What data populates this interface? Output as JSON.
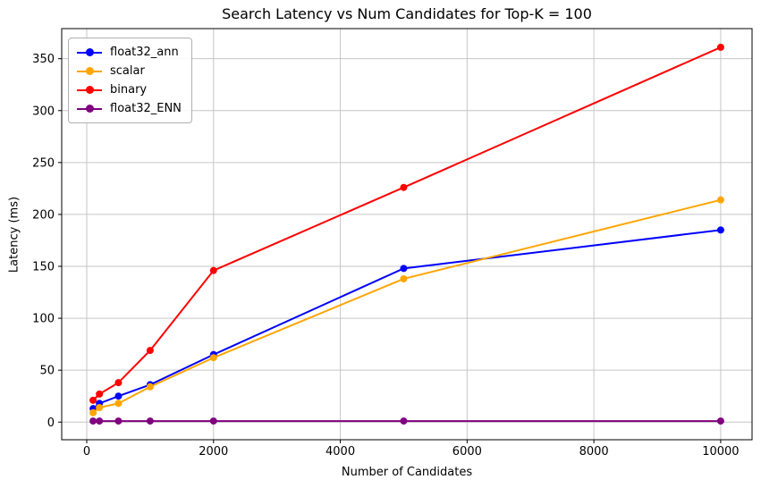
{
  "chart_data": {
    "type": "line",
    "title": "Search Latency vs Num Candidates for Top-K = 100",
    "xlabel": "Number of Candidates",
    "ylabel": "Latency (ms)",
    "x": [
      100,
      200,
      500,
      1000,
      2000,
      5000,
      10000
    ],
    "series": [
      {
        "name": "float32_ann",
        "color": "#0000ff",
        "values": [
          13,
          18,
          25,
          36,
          65,
          148,
          185
        ]
      },
      {
        "name": "scalar",
        "color": "#ffa500",
        "values": [
          9,
          14,
          18,
          34,
          62,
          138,
          214
        ]
      },
      {
        "name": "binary",
        "color": "#ff0000",
        "values": [
          21,
          27,
          38,
          69,
          146,
          226,
          361
        ]
      },
      {
        "name": "float32_ENN",
        "color": "#800080",
        "values": [
          1,
          1,
          1,
          1,
          1,
          1,
          1
        ]
      }
    ],
    "xticks": [
      0,
      2000,
      4000,
      6000,
      8000,
      10000
    ],
    "yticks": [
      0,
      50,
      100,
      150,
      200,
      250,
      300,
      350
    ],
    "xlim": [
      -395,
      10495
    ],
    "ylim": [
      -17,
      379
    ],
    "grid": true,
    "grid_color": "#c6c6c6",
    "spine_color": "#000000",
    "legend_position": "upper left",
    "marker": "o"
  }
}
